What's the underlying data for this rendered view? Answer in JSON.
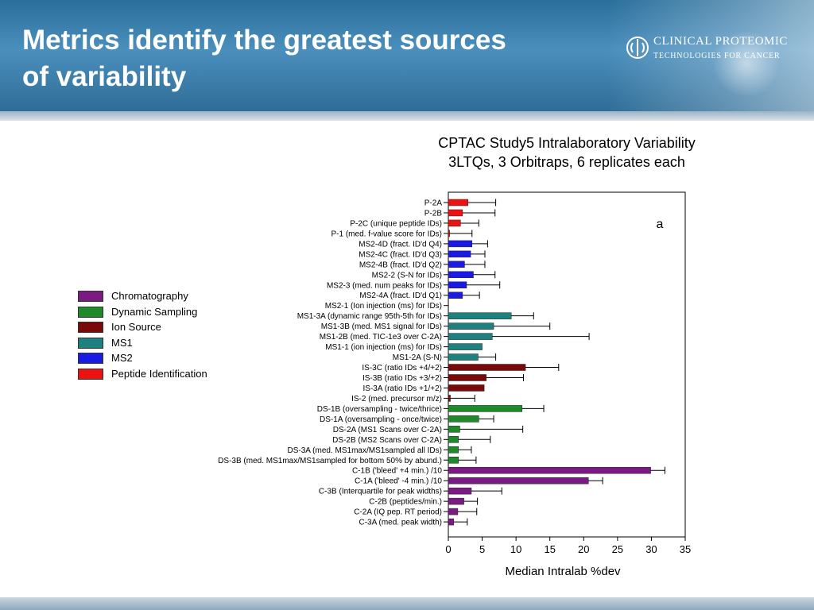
{
  "slide": {
    "title_line1": "Metrics identify the greatest sources",
    "title_line2": "of variability",
    "brand_line1": "CLINICAL PROTEOMIC",
    "brand_line2": "TECHNOLOGIES FOR CANCER"
  },
  "colors": {
    "Chromatography": "#7b1a82",
    "Dynamic Sampling": "#1e8a2a",
    "Ion Source": "#7a0a0a",
    "MS1": "#1f8080",
    "MS2": "#1a1ae6",
    "Peptide Identification": "#ee1111"
  },
  "legend": [
    {
      "label": "Chromatography",
      "color": "#7b1a82"
    },
    {
      "label": "Dynamic Sampling",
      "color": "#1e8a2a"
    },
    {
      "label": "Ion Source",
      "color": "#7a0a0a"
    },
    {
      "label": "MS1",
      "color": "#1f8080"
    },
    {
      "label": "MS2",
      "color": "#1a1ae6"
    },
    {
      "label": "Peptide Identification",
      "color": "#ee1111"
    }
  ],
  "chart_data": {
    "type": "bar",
    "orientation": "horizontal",
    "title": "CPTAC Study5 Intralaboratory Variability",
    "subtitle": "3LTQs, 3 Orbitraps, 6 replicates each",
    "annotation": "a",
    "xlabel": "Median Intralab %dev",
    "xlim": [
      0,
      35
    ],
    "xticks": [
      0,
      5,
      10,
      15,
      20,
      25,
      30,
      35
    ],
    "legend_position": "left",
    "categories": [
      "P-2A",
      "P-2B",
      "P-2C (unique peptide IDs)",
      "P-1 (med. f-value score for IDs)",
      "MS2-4D (fract. ID'd Q4)",
      "MS2-4C (fract. ID'd Q3)",
      "MS2-4B (fract. ID'd Q2)",
      "MS2-2 (S-N for IDs)",
      "MS2-3 (med. num peaks for IDs)",
      "MS2-4A (fract. ID'd Q1)",
      "MS2-1 (Ion injection (ms) for IDs)",
      "MS1-3A (dynamic range 95th-5th for IDs)",
      "MS1-3B (med. MS1 signal for IDs)",
      "MS1-2B (med. TIC-1e3 over C-2A)",
      "MS1-1 (ion injection (ms) for IDs)",
      "MS1-2A (S-N)",
      "IS-3C (ratio IDs +4/+2)",
      "IS-3B (ratio IDs +3/+2)",
      "IS-3A (ratio IDs +1/+2)",
      "IS-2 (med. precursor m/z)",
      "DS-1B (oversampling - twice/thrice)",
      "DS-1A (oversampling - once/twice)",
      "DS-2A (MS1 Scans over C-2A)",
      "DS-2B (MS2 Scans over C-2A)",
      "DS-3A (med. MS1max/MS1sampled all IDs)",
      "DS-3B (med. MS1max/MS1sampled for bottom 50% by abund.)",
      "C-1B ('bleed' +4 min.) /10",
      "C-1A ('bleed' -4 min.) /10",
      "C-3B (Interquartile  for peak widths)",
      "C-2B (peptides/min.)",
      "C-2A (IQ pep. RT period)",
      "C-3A (med. peak width)"
    ],
    "groups": [
      "Peptide Identification",
      "Peptide Identification",
      "Peptide Identification",
      "Peptide Identification",
      "MS2",
      "MS2",
      "MS2",
      "MS2",
      "MS2",
      "MS2",
      "MS2",
      "MS1",
      "MS1",
      "MS1",
      "MS1",
      "MS1",
      "Ion Source",
      "Ion Source",
      "Ion Source",
      "Ion Source",
      "Dynamic Sampling",
      "Dynamic Sampling",
      "Dynamic Sampling",
      "Dynamic Sampling",
      "Dynamic Sampling",
      "Dynamic Sampling",
      "Chromatography",
      "Chromatography",
      "Chromatography",
      "Chromatography",
      "Chromatography",
      "Chromatography"
    ],
    "values": [
      2.9,
      2.1,
      1.8,
      0.2,
      3.5,
      3.3,
      2.4,
      3.7,
      2.7,
      2.1,
      0.0,
      9.3,
      6.7,
      6.5,
      5.0,
      4.4,
      11.4,
      5.6,
      5.3,
      0.3,
      10.9,
      4.5,
      1.7,
      1.5,
      1.5,
      1.5,
      29.9,
      20.7,
      3.4,
      2.3,
      1.4,
      0.8
    ],
    "errors": [
      4.1,
      4.8,
      2.7,
      3.3,
      2.3,
      2.1,
      3.0,
      3.2,
      4.9,
      2.5,
      0.0,
      3.3,
      8.3,
      14.3,
      0.0,
      2.6,
      4.9,
      5.5,
      0.0,
      3.6,
      3.2,
      2.2,
      9.3,
      4.7,
      1.9,
      2.6,
      2.1,
      2.1,
      4.5,
      2.0,
      2.8,
      2.0
    ]
  }
}
